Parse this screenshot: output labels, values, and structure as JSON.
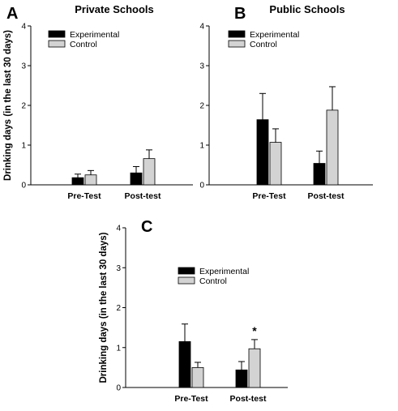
{
  "chart_data": [
    {
      "panel": "A",
      "type": "bar",
      "title": "Private Schools",
      "ylabel": "Drinking days (in the last 30 days)",
      "xlabel": "",
      "categories": [
        "Pre-Test",
        "Post-test"
      ],
      "ylim": [
        0,
        4
      ],
      "yticks": [
        "0",
        "1",
        "2",
        "3",
        "4"
      ],
      "grid": false,
      "legend_position": "top-left",
      "series": [
        {
          "name": "Experimental",
          "color": "#000000",
          "values": [
            0.18,
            0.3
          ],
          "errors": [
            0.09,
            0.16
          ]
        },
        {
          "name": "Control",
          "color": "#d3d3d3",
          "values": [
            0.25,
            0.66
          ],
          "errors": [
            0.11,
            0.22
          ]
        }
      ],
      "annotations": []
    },
    {
      "panel": "B",
      "type": "bar",
      "title": "Public Schools",
      "ylabel": "",
      "xlabel": "",
      "categories": [
        "Pre-Test",
        "Post-test"
      ],
      "ylim": [
        0,
        4
      ],
      "yticks": [
        "0",
        "1",
        "2",
        "3",
        "4"
      ],
      "grid": false,
      "legend_position": "top-left",
      "series": [
        {
          "name": "Experimental",
          "color": "#000000",
          "values": [
            1.64,
            0.54
          ],
          "errors": [
            0.66,
            0.31
          ]
        },
        {
          "name": "Control",
          "color": "#d3d3d3",
          "values": [
            1.07,
            1.88
          ],
          "errors": [
            0.34,
            0.59
          ]
        }
      ],
      "annotations": []
    },
    {
      "panel": "C",
      "type": "bar",
      "title": "",
      "ylabel": "Drinking days (in the last 30 days)",
      "xlabel": "",
      "categories": [
        "Pre-Test",
        "Post-test"
      ],
      "ylim": [
        0,
        4
      ],
      "yticks": [
        "0",
        "1",
        "2",
        "3",
        "4"
      ],
      "grid": false,
      "legend_position": "top-left",
      "series": [
        {
          "name": "Experimental",
          "color": "#000000",
          "values": [
            1.15,
            0.44
          ],
          "errors": [
            0.44,
            0.21
          ]
        },
        {
          "name": "Control",
          "color": "#d3d3d3",
          "values": [
            0.5,
            0.97
          ],
          "errors": [
            0.13,
            0.23
          ]
        }
      ],
      "annotations": [
        {
          "text": "*",
          "category": 1,
          "series": 1
        }
      ]
    }
  ]
}
